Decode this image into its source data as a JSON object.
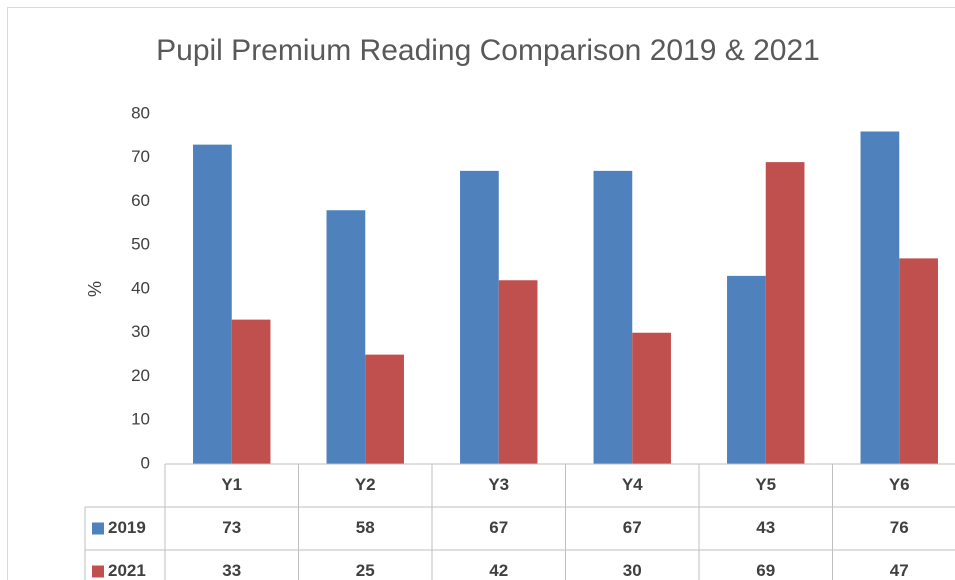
{
  "chart_data": {
    "type": "bar",
    "title": "Pupil Premium Reading Comparison 2019 & 2021",
    "y_label": "%",
    "categories": [
      "Y1",
      "Y2",
      "Y3",
      "Y4",
      "Y5",
      "Y6"
    ],
    "series": [
      {
        "name": "2019",
        "color": "#4f81bd",
        "values": [
          73,
          58,
          67,
          67,
          43,
          76
        ]
      },
      {
        "name": "2021",
        "color": "#c0504d",
        "values": [
          33,
          25,
          42,
          30,
          69,
          47
        ]
      }
    ],
    "ylim": [
      0,
      80
    ],
    "yticks": [
      0,
      10,
      20,
      30,
      40,
      50,
      60,
      70,
      80
    ],
    "grid": false,
    "data_table": true
  }
}
